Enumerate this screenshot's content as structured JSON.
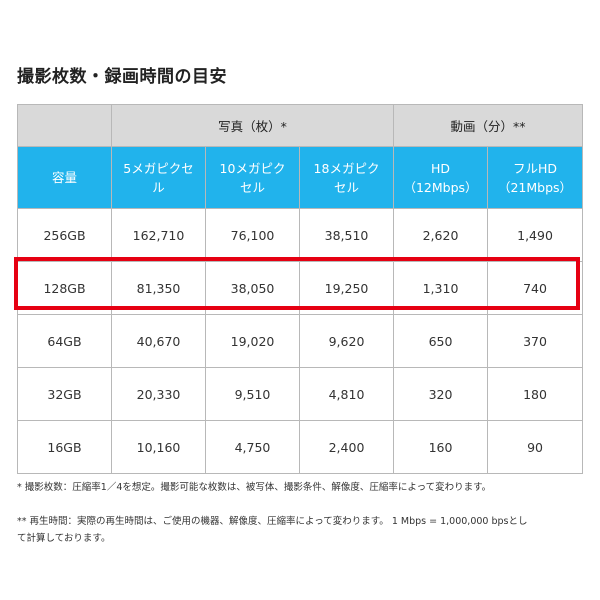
{
  "title": "撮影枚数・録画時間の目安",
  "table": {
    "group_headers": {
      "photo": "写真（枚）*",
      "video": "動画（分）**"
    },
    "columns": {
      "capacity": "容量",
      "mp5": [
        "5メガピクセ",
        "ル"
      ],
      "mp10": [
        "10メガピク",
        "セル"
      ],
      "mp18": [
        "18メガピク",
        "セル"
      ],
      "hd": [
        "HD",
        "（12Mbps）"
      ],
      "fhd": [
        "フルHD",
        "（21Mbps）"
      ]
    },
    "rows": [
      [
        "256GB",
        "162,710",
        "76,100",
        "38,510",
        "2,620",
        "1,490"
      ],
      [
        "128GB",
        "81,350",
        "38,050",
        "19,250",
        "1,310",
        "740"
      ],
      [
        "64GB",
        "40,670",
        "19,020",
        "9,620",
        "650",
        "370"
      ],
      [
        "32GB",
        "20,330",
        "9,510",
        "4,810",
        "320",
        "180"
      ],
      [
        "16GB",
        "10,160",
        "4,750",
        "2,400",
        "160",
        "90"
      ]
    ]
  },
  "notes": {
    "note1": "* 撮影枚数：圧縮率1／4を想定。撮影可能な枚数は、被写体、撮影条件、解像度、圧縮率によって変わります。",
    "note2_line1": "** 再生時間：実際の再生時間は、ご使用の機器、解像度、圧縮率によって変わります。 1 Mbps = 1,000,000 bpsとし",
    "note2_line2": "て計算しております。"
  },
  "colors": {
    "header_blue": "#21b3ec",
    "group_gray": "#d9d9d9",
    "highlight_red": "#e60012"
  }
}
